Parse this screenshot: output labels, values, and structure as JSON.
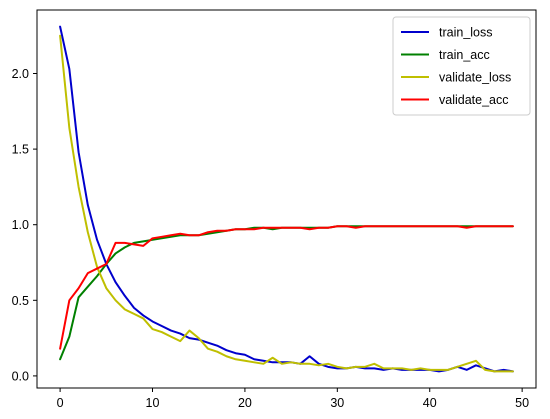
{
  "chart_data": {
    "type": "line",
    "title": "",
    "xlabel": "",
    "ylabel": "",
    "xlim": [
      -2.5,
      51.5
    ],
    "ylim": [
      -0.08,
      2.42
    ],
    "x_ticks": [
      0,
      10,
      20,
      30,
      40,
      50
    ],
    "x_tick_labels": [
      "0",
      "10",
      "20",
      "30",
      "40",
      "50"
    ],
    "y_ticks": [
      0.0,
      0.5,
      1.0,
      1.5,
      2.0
    ],
    "y_tick_labels": [
      "0.0",
      "0.5",
      "1.0",
      "1.5",
      "2.0"
    ],
    "grid": false,
    "legend_position": "top-right",
    "x": [
      0,
      1,
      2,
      3,
      4,
      5,
      6,
      7,
      8,
      9,
      10,
      11,
      12,
      13,
      14,
      15,
      16,
      17,
      18,
      19,
      20,
      21,
      22,
      23,
      24,
      25,
      26,
      27,
      28,
      29,
      30,
      31,
      32,
      33,
      34,
      35,
      36,
      37,
      38,
      39,
      40,
      41,
      42,
      43,
      44,
      45,
      46,
      47,
      48,
      49
    ],
    "series": [
      {
        "name": "train_loss",
        "color": "#0000cc",
        "values": [
          2.31,
          2.03,
          1.48,
          1.13,
          0.9,
          0.74,
          0.62,
          0.53,
          0.45,
          0.4,
          0.36,
          0.33,
          0.3,
          0.28,
          0.25,
          0.24,
          0.22,
          0.2,
          0.17,
          0.15,
          0.14,
          0.11,
          0.1,
          0.09,
          0.09,
          0.09,
          0.08,
          0.13,
          0.08,
          0.06,
          0.05,
          0.05,
          0.06,
          0.05,
          0.05,
          0.04,
          0.05,
          0.04,
          0.04,
          0.04,
          0.04,
          0.03,
          0.04,
          0.06,
          0.04,
          0.07,
          0.05,
          0.03,
          0.04,
          0.03
        ]
      },
      {
        "name": "train_acc",
        "color": "#008000",
        "values": [
          0.11,
          0.26,
          0.52,
          0.59,
          0.66,
          0.74,
          0.81,
          0.85,
          0.88,
          0.89,
          0.9,
          0.91,
          0.92,
          0.93,
          0.93,
          0.93,
          0.94,
          0.95,
          0.96,
          0.97,
          0.97,
          0.98,
          0.98,
          0.97,
          0.98,
          0.98,
          0.98,
          0.98,
          0.98,
          0.98,
          0.99,
          0.99,
          0.99,
          0.99,
          0.99,
          0.99,
          0.99,
          0.99,
          0.99,
          0.99,
          0.99,
          0.99,
          0.99,
          0.99,
          0.99,
          0.99,
          0.99,
          0.99,
          0.99,
          0.99
        ]
      },
      {
        "name": "validate_loss",
        "color": "#bfbf00",
        "values": [
          2.25,
          1.64,
          1.25,
          0.95,
          0.72,
          0.58,
          0.5,
          0.44,
          0.41,
          0.38,
          0.31,
          0.29,
          0.26,
          0.23,
          0.3,
          0.25,
          0.18,
          0.16,
          0.13,
          0.11,
          0.1,
          0.09,
          0.08,
          0.12,
          0.08,
          0.09,
          0.08,
          0.08,
          0.07,
          0.08,
          0.06,
          0.05,
          0.06,
          0.06,
          0.08,
          0.05,
          0.05,
          0.05,
          0.04,
          0.05,
          0.04,
          0.04,
          0.04,
          0.06,
          0.08,
          0.1,
          0.04,
          0.03,
          0.03,
          0.03
        ]
      },
      {
        "name": "validate_acc",
        "color": "#ff0000",
        "values": [
          0.18,
          0.5,
          0.58,
          0.68,
          0.71,
          0.74,
          0.88,
          0.88,
          0.87,
          0.86,
          0.91,
          0.92,
          0.93,
          0.94,
          0.93,
          0.93,
          0.95,
          0.96,
          0.96,
          0.97,
          0.97,
          0.97,
          0.98,
          0.98,
          0.98,
          0.98,
          0.98,
          0.97,
          0.98,
          0.98,
          0.99,
          0.99,
          0.98,
          0.99,
          0.99,
          0.99,
          0.99,
          0.99,
          0.99,
          0.99,
          0.99,
          0.99,
          0.99,
          0.99,
          0.98,
          0.99,
          0.99,
          0.99,
          0.99,
          0.99
        ]
      }
    ]
  }
}
